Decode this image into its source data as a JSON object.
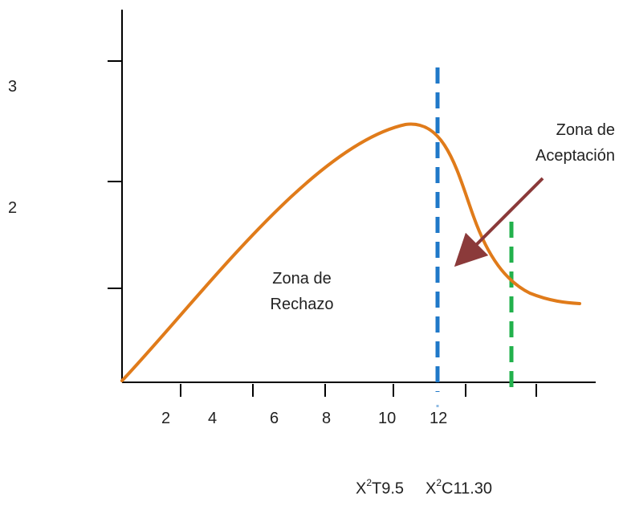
{
  "figure": {
    "y_tick_labels": [
      "3",
      "2"
    ],
    "x_tick_labels": [
      "2",
      "4",
      "6",
      "8",
      "10",
      "12"
    ],
    "zones": {
      "rejection": [
        "Zona de",
        "Rechazo"
      ],
      "acceptance": [
        "Zona de",
        "Aceptación"
      ]
    },
    "critical_values": {
      "table": {
        "sym": "X",
        "sup": "2",
        "rest": "T9.5"
      },
      "calculated": {
        "sym": "X",
        "sup": "2",
        "rest": "C11.30"
      }
    },
    "colors": {
      "curve": "#E07B1A",
      "table_line": "#1F78C8",
      "calc_line": "#22B14C",
      "arrow": "#8B3A3A",
      "axis": "#000000"
    }
  }
}
